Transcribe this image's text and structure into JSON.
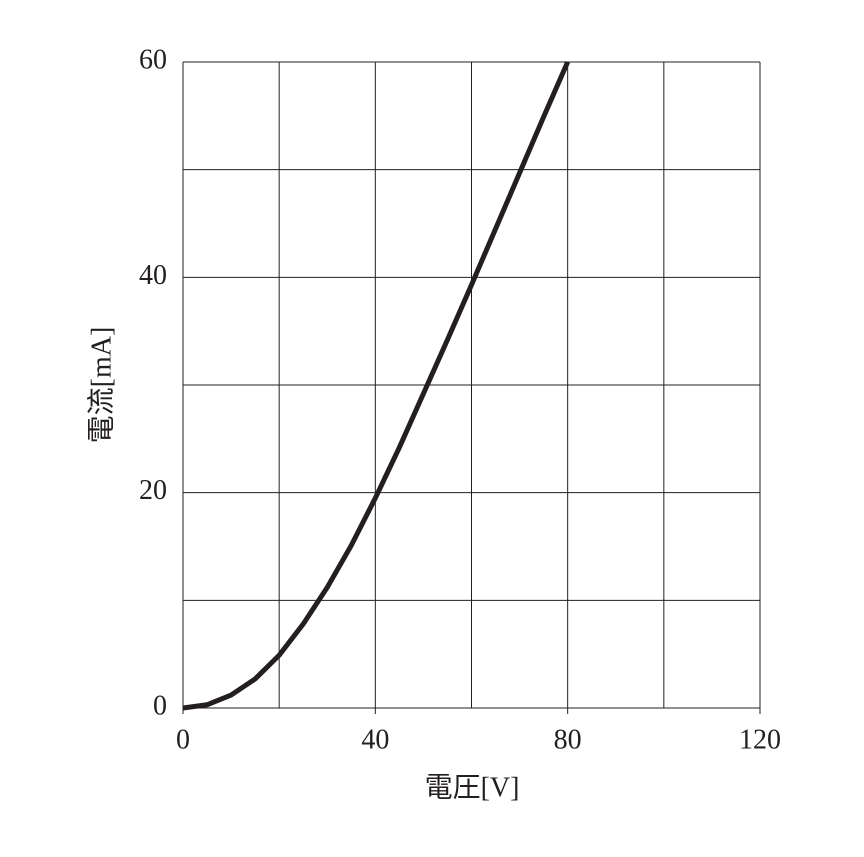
{
  "chart_data": {
    "type": "line",
    "xlabel": "電圧[V]",
    "ylabel": "電流[mA]",
    "x": [
      0,
      5,
      10,
      15,
      20,
      25,
      30,
      35,
      40,
      45,
      50,
      55,
      60,
      65,
      70,
      75,
      80
    ],
    "series": [
      {
        "color": "#231f20",
        "values": [
          0,
          0.3,
          1.2,
          2.7,
          4.9,
          7.8,
          11.2,
          15.1,
          19.5,
          24.2,
          29.2,
          34.2,
          39.3,
          44.5,
          49.7,
          54.9,
          60
        ]
      }
    ],
    "xlim": [
      0,
      120
    ],
    "ylim": [
      0,
      60
    ],
    "xticks": [
      0,
      40,
      80,
      120
    ],
    "yticks": [
      0,
      20,
      40,
      60
    ],
    "xgrid": [
      0,
      20,
      40,
      60,
      80,
      100,
      120
    ],
    "ygrid": [
      0,
      10,
      20,
      30,
      40,
      50,
      60
    ],
    "grid": true
  }
}
